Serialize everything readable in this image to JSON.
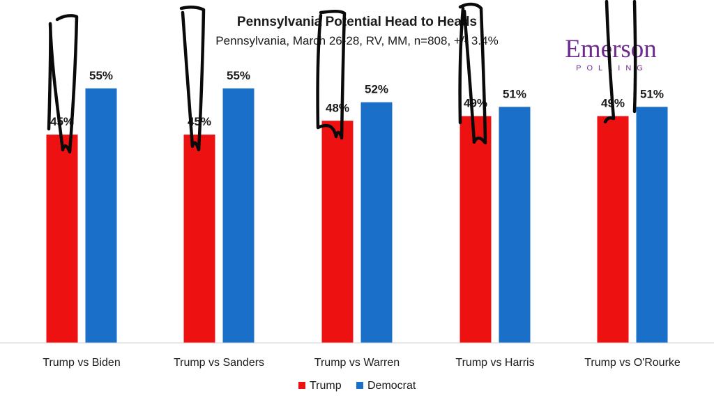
{
  "chart_data": {
    "type": "bar",
    "title": "Pennsylvania Potential Head to Heads",
    "subtitle": "Pennsylvania, March 26-28, RV, MM, n=808, +/- 3.4%",
    "categories": [
      "Trump vs Biden",
      "Trump vs Sanders",
      "Trump vs Warren",
      "Trump vs Harris",
      "Trump vs O'Rourke"
    ],
    "series": [
      {
        "name": "Trump",
        "color": "#ee1111",
        "values": [
          45,
          45,
          48,
          49,
          49
        ],
        "labels": [
          "45%",
          "45%",
          "48%",
          "49%",
          "49%"
        ]
      },
      {
        "name": "Democrat",
        "color": "#1a6fc9",
        "values": [
          55,
          55,
          52,
          51,
          51
        ],
        "labels": [
          "55%",
          "55%",
          "52%",
          "51%",
          "51%"
        ]
      }
    ],
    "ylim": [
      0,
      60
    ],
    "xlabel": "",
    "ylabel": "",
    "grid": false,
    "legend_position": "bottom-center"
  },
  "logo": {
    "name": "Emerson",
    "tagline": "POLLING",
    "color": "#6e2b8f"
  }
}
